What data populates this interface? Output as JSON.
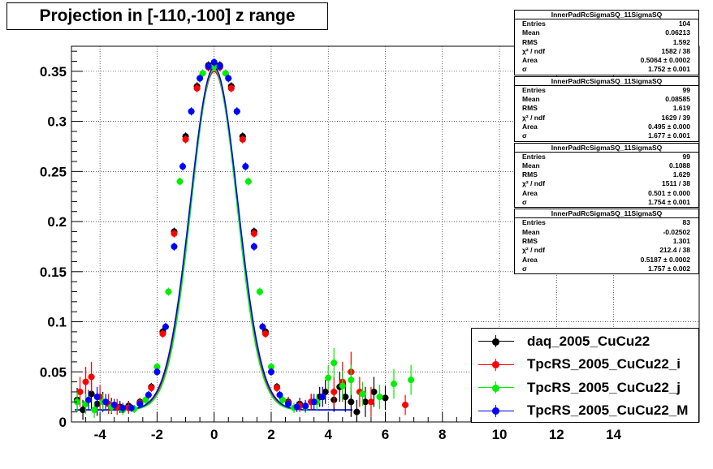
{
  "title": "Projection in [-110,-100] z range",
  "chart_data": {
    "type": "scatter",
    "title": "Projection in [-110,-100] z range",
    "xlim": [
      -5,
      17
    ],
    "ylim": [
      0,
      0.375
    ],
    "x_ticks": [
      -4,
      -2,
      0,
      2,
      4,
      6,
      8,
      10,
      12,
      14
    ],
    "y_ticks": [
      0,
      0.05,
      0.1,
      0.15,
      0.2,
      0.25,
      0.3,
      0.35
    ],
    "y_tick_labels": [
      "0",
      "0.05",
      "0.1",
      "0.15",
      "0.2",
      "0.25",
      "0.3",
      "0.35"
    ],
    "grid": true,
    "legend_position": "bottom-right",
    "series": [
      {
        "name": "daq_2005_CuCu22",
        "color": "#000000",
        "x": [
          -4.8,
          -4.6,
          -4.3,
          -4.1,
          -3.9,
          -3.6,
          -3.3,
          -3.0,
          -2.6,
          -2.2,
          -1.8,
          -1.4,
          -1.0,
          -0.6,
          -0.2,
          0.0,
          0.2,
          0.6,
          1.0,
          1.4,
          1.8,
          2.2,
          2.6,
          3.0,
          3.4,
          3.7,
          3.9,
          4.2,
          4.4,
          4.6,
          4.8,
          5.0,
          5.3,
          5.6,
          6.0
        ],
        "y": [
          0.022,
          0.012,
          0.028,
          0.018,
          0.02,
          0.016,
          0.015,
          0.016,
          0.02,
          0.035,
          0.09,
          0.19,
          0.285,
          0.335,
          0.356,
          0.358,
          0.356,
          0.335,
          0.285,
          0.19,
          0.09,
          0.035,
          0.02,
          0.018,
          0.02,
          0.025,
          0.03,
          0.022,
          0.035,
          0.025,
          0.02,
          0.01,
          0.02,
          0.03,
          0.024
        ],
        "err": [
          0.012,
          0.01,
          0.015,
          0.012,
          0.01,
          0.008,
          0.006,
          0.005,
          0.004,
          0.004,
          0.004,
          0.004,
          0.004,
          0.004,
          0.004,
          0.004,
          0.004,
          0.004,
          0.004,
          0.004,
          0.004,
          0.004,
          0.005,
          0.006,
          0.008,
          0.01,
          0.012,
          0.012,
          0.015,
          0.015,
          0.015,
          0.012,
          0.015,
          0.015,
          0.012
        ]
      },
      {
        "name": "TpcRS_2005_CuCu22_i",
        "color": "#ff0000",
        "x": [
          -4.7,
          -4.5,
          -4.3,
          -4.0,
          -3.7,
          -3.4,
          -3.0,
          -2.6,
          -2.2,
          -1.8,
          -1.4,
          -1.0,
          -0.6,
          -0.2,
          0.0,
          0.2,
          0.6,
          1.0,
          1.4,
          1.8,
          2.2,
          2.6,
          3.0,
          3.4,
          3.8,
          4.2,
          4.5,
          4.8,
          5.1,
          5.5,
          6.7
        ],
        "y": [
          0.03,
          0.04,
          0.045,
          0.025,
          0.018,
          0.015,
          0.014,
          0.019,
          0.034,
          0.088,
          0.188,
          0.282,
          0.333,
          0.354,
          0.356,
          0.354,
          0.333,
          0.282,
          0.188,
          0.088,
          0.034,
          0.019,
          0.016,
          0.02,
          0.025,
          0.03,
          0.04,
          0.05,
          0.03,
          0.02,
          0.017
        ],
        "err": [
          0.015,
          0.015,
          0.015,
          0.012,
          0.01,
          0.008,
          0.006,
          0.005,
          0.004,
          0.004,
          0.004,
          0.004,
          0.004,
          0.004,
          0.004,
          0.004,
          0.004,
          0.004,
          0.004,
          0.004,
          0.004,
          0.005,
          0.006,
          0.008,
          0.01,
          0.015,
          0.02,
          0.02,
          0.015,
          0.015,
          0.01
        ]
      },
      {
        "name": "TpcRS_2005_CuCu22_j",
        "color": "#00ee00",
        "x": [
          -4.8,
          -4.5,
          -4.2,
          -3.9,
          -3.6,
          -3.2,
          -2.8,
          -2.4,
          -2.0,
          -1.6,
          -1.2,
          -0.8,
          -0.4,
          0.0,
          0.4,
          0.8,
          1.2,
          1.6,
          2.0,
          2.4,
          2.8,
          3.2,
          3.6,
          4.0,
          4.2,
          4.5,
          4.8,
          5.2,
          5.8,
          6.3,
          6.9
        ],
        "y": [
          0.02,
          0.018,
          0.012,
          0.02,
          0.015,
          0.012,
          0.013,
          0.022,
          0.055,
          0.13,
          0.24,
          0.31,
          0.348,
          0.355,
          0.348,
          0.31,
          0.24,
          0.13,
          0.055,
          0.022,
          0.014,
          0.015,
          0.02,
          0.044,
          0.059,
          0.036,
          0.042,
          0.028,
          0.025,
          0.038,
          0.042
        ],
        "err": [
          0.01,
          0.01,
          0.008,
          0.008,
          0.006,
          0.005,
          0.004,
          0.004,
          0.004,
          0.004,
          0.004,
          0.004,
          0.004,
          0.004,
          0.004,
          0.004,
          0.004,
          0.004,
          0.004,
          0.004,
          0.005,
          0.006,
          0.008,
          0.012,
          0.015,
          0.015,
          0.015,
          0.012,
          0.012,
          0.015,
          0.015
        ]
      },
      {
        "name": "TpcRS_2005_CuCu22_M",
        "color": "#0000ff",
        "x": [
          -4.4,
          -4.1,
          -3.8,
          -3.5,
          -3.2,
          -2.9,
          -2.6,
          -2.3,
          -2.0,
          -1.7,
          -1.4,
          -1.1,
          -0.8,
          -0.5,
          -0.2,
          0.0,
          0.2,
          0.5,
          0.8,
          1.1,
          1.4,
          1.7,
          2.0,
          2.3,
          2.6,
          2.9,
          3.2,
          3.5,
          3.8
        ],
        "y": [
          0.022,
          0.025,
          0.02,
          0.017,
          0.014,
          0.014,
          0.018,
          0.027,
          0.05,
          0.095,
          0.175,
          0.255,
          0.31,
          0.343,
          0.355,
          0.359,
          0.355,
          0.343,
          0.31,
          0.255,
          0.175,
          0.095,
          0.05,
          0.027,
          0.018,
          0.015,
          0.016,
          0.02,
          0.025
        ],
        "err": [
          0.01,
          0.01,
          0.008,
          0.006,
          0.005,
          0.004,
          0.004,
          0.004,
          0.004,
          0.004,
          0.004,
          0.004,
          0.004,
          0.004,
          0.004,
          0.004,
          0.004,
          0.004,
          0.004,
          0.004,
          0.004,
          0.004,
          0.004,
          0.004,
          0.004,
          0.005,
          0.006,
          0.008,
          0.01
        ]
      }
    ],
    "curves": [
      {
        "series": 1,
        "mean": 0.0,
        "sigma": 0.818,
        "peak": 0.35,
        "base": 0.012,
        "color": "#ff0000"
      },
      {
        "series": 2,
        "mean": 0.0,
        "sigma": 0.8,
        "peak": 0.352,
        "base": 0.012,
        "color": "#00ee00"
      },
      {
        "series": 3,
        "mean": 0.0,
        "sigma": 0.83,
        "peak": 0.354,
        "base": 0.012,
        "color": "#0000ff"
      }
    ]
  },
  "stats": [
    {
      "name": "InnerPadRcSigmaSQ_11SigmaSQ",
      "rows": [
        {
          "label": "Entries",
          "value": "104"
        },
        {
          "label": "Mean",
          "value": "0.06213"
        },
        {
          "label": "RMS",
          "value": "1.592"
        },
        {
          "label": "χ² / ndf",
          "value": "1582 / 38"
        },
        {
          "label": "Area",
          "value": "0.5064 ± 0.0002"
        },
        {
          "label": "σ",
          "value": "1.752 ± 0.001"
        }
      ]
    },
    {
      "name": "InnerPadRcSigmaSQ_11SigmaSQ",
      "rows": [
        {
          "label": "Entries",
          "value": "99"
        },
        {
          "label": "Mean",
          "value": "0.08585"
        },
        {
          "label": "RMS",
          "value": "1.619"
        },
        {
          "label": "χ² / ndf",
          "value": "1629 / 39"
        },
        {
          "label": "Area",
          "value": "0.495 ± 0.000"
        },
        {
          "label": "σ",
          "value": "1.677 ± 0.001"
        }
      ]
    },
    {
      "name": "InnerPadRcSigmaSQ_11SigmaSQ",
      "rows": [
        {
          "label": "Entries",
          "value": "99"
        },
        {
          "label": "Mean",
          "value": "0.1088"
        },
        {
          "label": "RMS",
          "value": "1.629"
        },
        {
          "label": "χ² / ndf",
          "value": "1511 / 38"
        },
        {
          "label": "Area",
          "value": "0.501 ± 0.000"
        },
        {
          "label": "σ",
          "value": "1.754 ± 0.001"
        }
      ]
    },
    {
      "name": "InnerPadRcSigmaSQ_11SigmaSQ",
      "rows": [
        {
          "label": "Entries",
          "value": "83"
        },
        {
          "label": "Mean",
          "value": "-0.02502"
        },
        {
          "label": "RMS",
          "value": "1.301"
        },
        {
          "label": "χ² / ndf",
          "value": "212.4 / 38"
        },
        {
          "label": "Area",
          "value": "0.5187 ± 0.0002"
        },
        {
          "label": "σ",
          "value": "1.757 ± 0.002"
        }
      ]
    }
  ],
  "legend": [
    {
      "label": "daq_2005_CuCu22",
      "color": "#000000"
    },
    {
      "label": "TpcRS_2005_CuCu22_i",
      "color": "#ff0000"
    },
    {
      "label": "TpcRS_2005_CuCu22_j",
      "color": "#00ee00"
    },
    {
      "label": "TpcRS_2005_CuCu22_M",
      "color": "#0000ff"
    }
  ]
}
